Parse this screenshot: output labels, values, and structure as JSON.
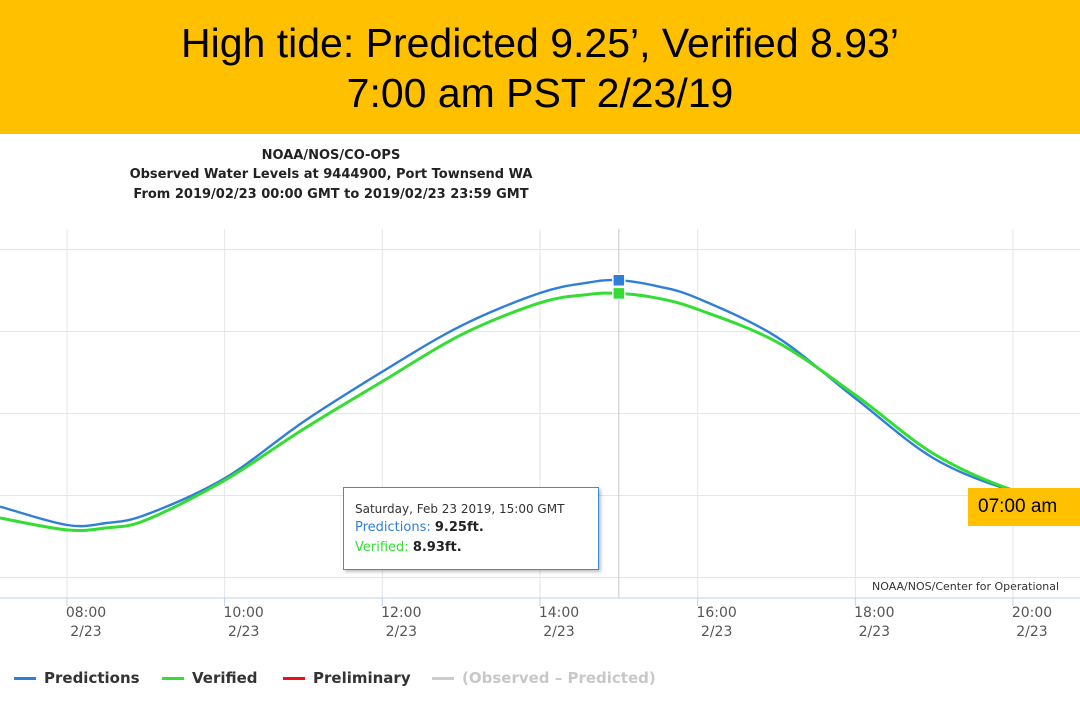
{
  "banner": {
    "line1": "High tide: Predicted 9.25’, Verified 8.93’",
    "line2": "7:00 am PST  2/23/19",
    "bg_color": "#FFC000"
  },
  "chart_data": {
    "type": "line",
    "title": "NOAA/NOS/CO-OPS",
    "subtitle": [
      "Observed Water Levels at 9444900, Port Townsend WA",
      "From 2019/02/23 00:00 GMT to 2019/02/23 23:59 GMT"
    ],
    "x_ticks": [
      {
        "time": "08:00",
        "date": "2/23",
        "hour": 8
      },
      {
        "time": "10:00",
        "date": "2/23",
        "hour": 10
      },
      {
        "time": "12:00",
        "date": "2/23",
        "hour": 12
      },
      {
        "time": "14:00",
        "date": "2/23",
        "hour": 14
      },
      {
        "time": "16:00",
        "date": "2/23",
        "hour": 16
      },
      {
        "time": "18:00",
        "date": "2/23",
        "hour": 18
      },
      {
        "time": "20:00",
        "date": "2/23",
        "hour": 20
      }
    ],
    "xlim": [
      7.15,
      20.85
    ],
    "ylim": [
      1.5,
      10.5
    ],
    "y_gridlines": [
      2,
      4,
      6,
      8,
      10
    ],
    "grid": true,
    "x_hours": [
      7.15,
      8.0,
      8.5,
      9.0,
      10.0,
      11.0,
      12.0,
      13.0,
      14.0,
      14.6,
      15.0,
      15.5,
      16.0,
      17.0,
      18.0,
      19.0,
      20.0,
      20.85
    ],
    "series": [
      {
        "name": "Predictions",
        "color": "#2f7ed8",
        "values": [
          3.73,
          3.28,
          3.33,
          3.53,
          4.42,
          5.8,
          7.02,
          8.14,
          8.94,
          9.19,
          9.25,
          9.1,
          8.81,
          7.87,
          6.37,
          4.9,
          4.11,
          3.84
        ]
      },
      {
        "name": "Verified",
        "color": "#33dd33",
        "values": [
          3.45,
          3.16,
          3.21,
          3.4,
          4.37,
          5.62,
          6.78,
          7.92,
          8.7,
          8.9,
          8.93,
          8.81,
          8.54,
          7.75,
          6.45,
          5.01,
          4.13,
          3.79
        ]
      }
    ],
    "marker_hour": 15,
    "tooltip": {
      "header": "Saturday, Feb 23 2019, 15:00 GMT",
      "pred_label": "Predictions:",
      "pred_value": "9.25ft.",
      "ver_label": "Verified:",
      "ver_value": "8.93ft."
    },
    "legend": [
      {
        "label": "Predictions",
        "color": "#2f7ed8"
      },
      {
        "label": "Verified",
        "color": "#33dd33"
      },
      {
        "label": "Preliminary",
        "color": "#ee1111"
      },
      {
        "label": "(Observed – Predicted)",
        "color": "#cccccc"
      }
    ],
    "credit": "NOAA/NOS/Center for Operational",
    "time_tag": "07:00 am"
  }
}
